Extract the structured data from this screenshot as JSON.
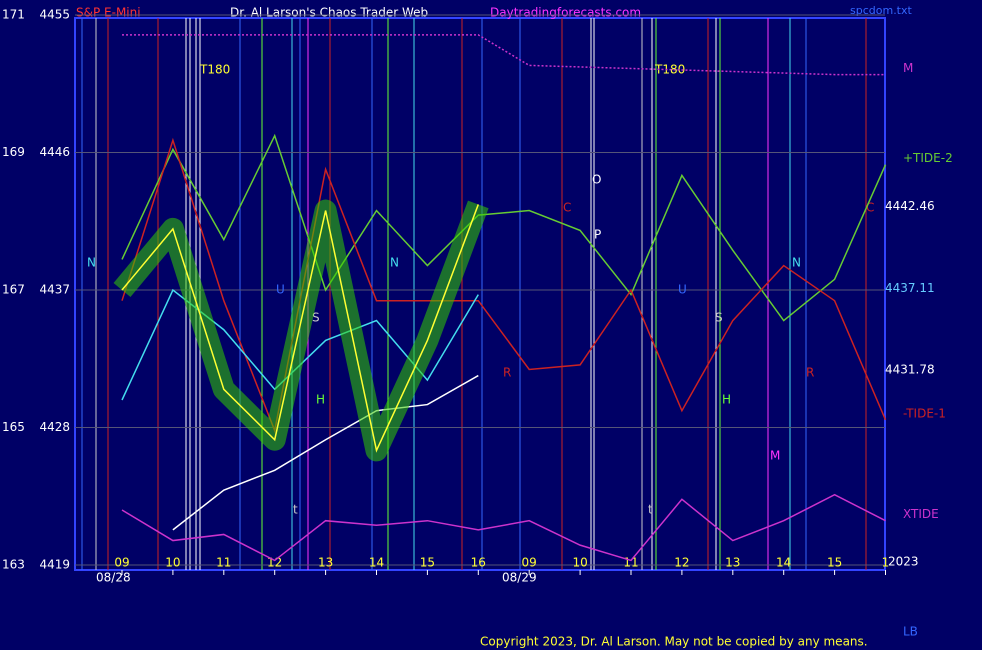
{
  "chart_data": {
    "type": "line",
    "title": "Dr. Al Larson's Chaos Trader Web",
    "symbol": "S&P E-Mini",
    "site": "Daytradingforecasts.com",
    "file": "spcdom.txt",
    "copyright": "Copyright 2023, Dr. Al Larson. May not be copied by any means.",
    "corner_label": "LB",
    "year_label": "2023",
    "dates": [
      "08/28",
      "08/29"
    ],
    "categories": [
      "09",
      "10",
      "11",
      "12",
      "13",
      "14",
      "15",
      "16",
      "09",
      "10",
      "11",
      "12",
      "13",
      "14",
      "15",
      "1"
    ],
    "ylim": [
      4419,
      4455
    ],
    "yticks": [
      4419,
      4428,
      4437,
      4446,
      4455
    ],
    "y2lim": [
      163,
      171
    ],
    "y2ticks": [
      163,
      165,
      167,
      169,
      171
    ],
    "grid": true,
    "price_labels": [
      {
        "value": 4442.46,
        "label": "4442.46",
        "color": "#ffffff"
      },
      {
        "value": 4437.11,
        "label": "4437.11",
        "color": "#66ccff"
      },
      {
        "value": 4431.78,
        "label": "4431.78",
        "color": "#ffffff"
      }
    ],
    "annotations": [
      "T180",
      "T180",
      "N",
      "N",
      "N",
      "O",
      "P",
      "C",
      "C",
      "R",
      "R",
      "H",
      "H",
      "S",
      "S",
      "M",
      "U",
      "U",
      "t",
      "t"
    ],
    "series": [
      {
        "name": "M",
        "color": "#cc33cc",
        "values": [
          4453.7,
          4453.7,
          4453.7,
          4453.7,
          4453.7,
          4453.7,
          4453.7,
          4453.7,
          4451.7,
          4451.6,
          4451.5,
          4451.4,
          4451.3,
          4451.2,
          4451.1,
          4451.1
        ]
      },
      {
        "name": "+TIDE-2",
        "color": "#66cc33",
        "values": [
          4439,
          4446.2,
          4440.3,
          4447.1,
          4437,
          4442.2,
          4438.6,
          4441.9,
          4442.2,
          4440.9,
          4436.7,
          4444.5,
          4439.6,
          4435,
          4437.7,
          4445.2
        ]
      },
      {
        "name": "-TIDE-1",
        "color": "#cc2222",
        "values": [
          4436.3,
          4446.8,
          4436.3,
          4427.8,
          4444.9,
          4436.3,
          4436.3,
          4436.3,
          4431.8,
          4432.1,
          4437,
          4429.1,
          4435,
          4438.6,
          4436.3,
          4428.5
        ]
      },
      {
        "name": "XTIDE",
        "color": "#cc33cc",
        "values": [
          4422.6,
          4420.6,
          4421,
          4419.3,
          4421.9,
          4421.6,
          4421.9,
          4421.3,
          4421.9,
          4420.3,
          4419.3,
          4423.3,
          4420.6,
          4421.9,
          4423.6,
          4421.9
        ]
      },
      {
        "color": "#44ddee",
        "values": [
          4429.8,
          4437,
          4434.4,
          4430.5,
          4433.7,
          4435,
          4431.1,
          4436.7,
          null,
          null,
          null,
          null,
          null,
          null,
          null,
          null
        ]
      },
      {
        "color": "#ffffff",
        "values": [
          null,
          4421.3,
          4423.9,
          4425.2,
          4427.2,
          4429.1,
          4429.5,
          4431.4,
          null,
          null,
          null,
          null,
          null,
          null,
          null,
          null
        ]
      },
      {
        "color": "#ffff33",
        "values": [
          4437,
          4441,
          4430.5,
          4427.2,
          4442.2,
          4426.5,
          4433.7,
          4442.6,
          null,
          null,
          null,
          null,
          null,
          null,
          null,
          null
        ]
      }
    ]
  }
}
